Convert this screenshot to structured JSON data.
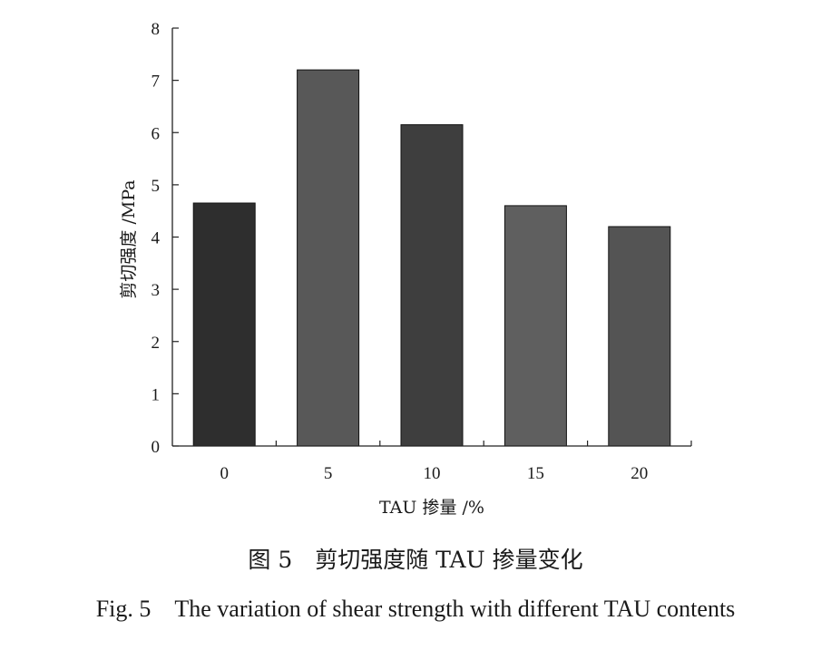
{
  "chart_data": {
    "type": "bar",
    "categories": [
      "0",
      "5",
      "10",
      "15",
      "20"
    ],
    "values": [
      4.65,
      7.2,
      6.15,
      4.6,
      4.2
    ],
    "bar_colors": [
      "#2e2e2e",
      "#585858",
      "#3e3e3e",
      "#5f5f5f",
      "#545454"
    ],
    "ylim": [
      0,
      8
    ],
    "yticks": [
      "0",
      "1",
      "2",
      "3",
      "4",
      "5",
      "6",
      "7",
      "8"
    ],
    "xlabel": "TAU 掺量 /%",
    "ylabel": "剪切强度 /MPa",
    "grid": false
  },
  "caption": {
    "cn": "图 5　剪切强度随 TAU 掺量变化",
    "en": "Fig. 5　The variation of shear strength with different TAU contents"
  }
}
